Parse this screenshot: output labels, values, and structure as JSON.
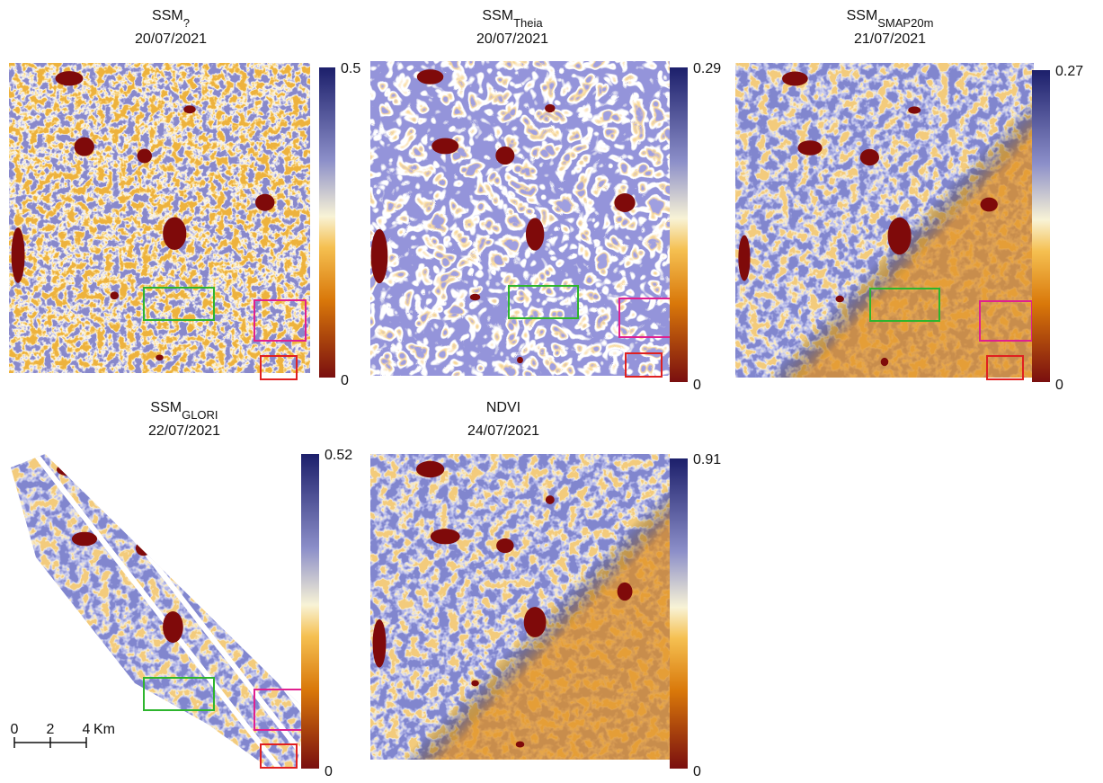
{
  "panels": [
    {
      "title": "SSM",
      "subscript": "?",
      "date": "20/07/2021",
      "colorbar": {
        "max": 0.5,
        "min": 0
      }
    },
    {
      "title": "SSM",
      "subscript": "Theia",
      "date": "20/07/2021",
      "colorbar": {
        "max": 0.29,
        "min": 0
      }
    },
    {
      "title": "SSM",
      "subscript": "SMAP20m",
      "date": "21/07/2021",
      "colorbar": {
        "max": 0.27,
        "min": 0
      }
    },
    {
      "title": "SSM",
      "subscript": "GLORI",
      "date": "22/07/2021",
      "colorbar": {
        "max": 0.52,
        "min": 0
      }
    },
    {
      "title": "NDVI",
      "date": "24/07/2021",
      "colorbar": {
        "max": 0.91,
        "min": 0
      }
    }
  ],
  "scale_bar": {
    "ticks": [
      0,
      2,
      4
    ],
    "unit": "Km"
  }
}
